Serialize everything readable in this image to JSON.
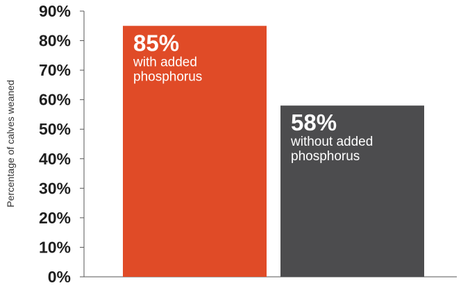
{
  "chart_data": {
    "type": "bar",
    "ylabel": "Percentage of calves weaned",
    "ylim": [
      0,
      90
    ],
    "yticks": [
      "0%",
      "10%",
      "20%",
      "30%",
      "40%",
      "50%",
      "60%",
      "70%",
      "80%",
      "90%"
    ],
    "grid": false,
    "legend": "none",
    "bars": [
      {
        "value": 85,
        "value_label": "85%",
        "label_lines": [
          "with added",
          "phosphorus"
        ],
        "color": "#e04b27"
      },
      {
        "value": 58,
        "value_label": "58%",
        "label_lines": [
          "without added",
          "phosphorus"
        ],
        "color": "#4c4c4e"
      }
    ]
  }
}
